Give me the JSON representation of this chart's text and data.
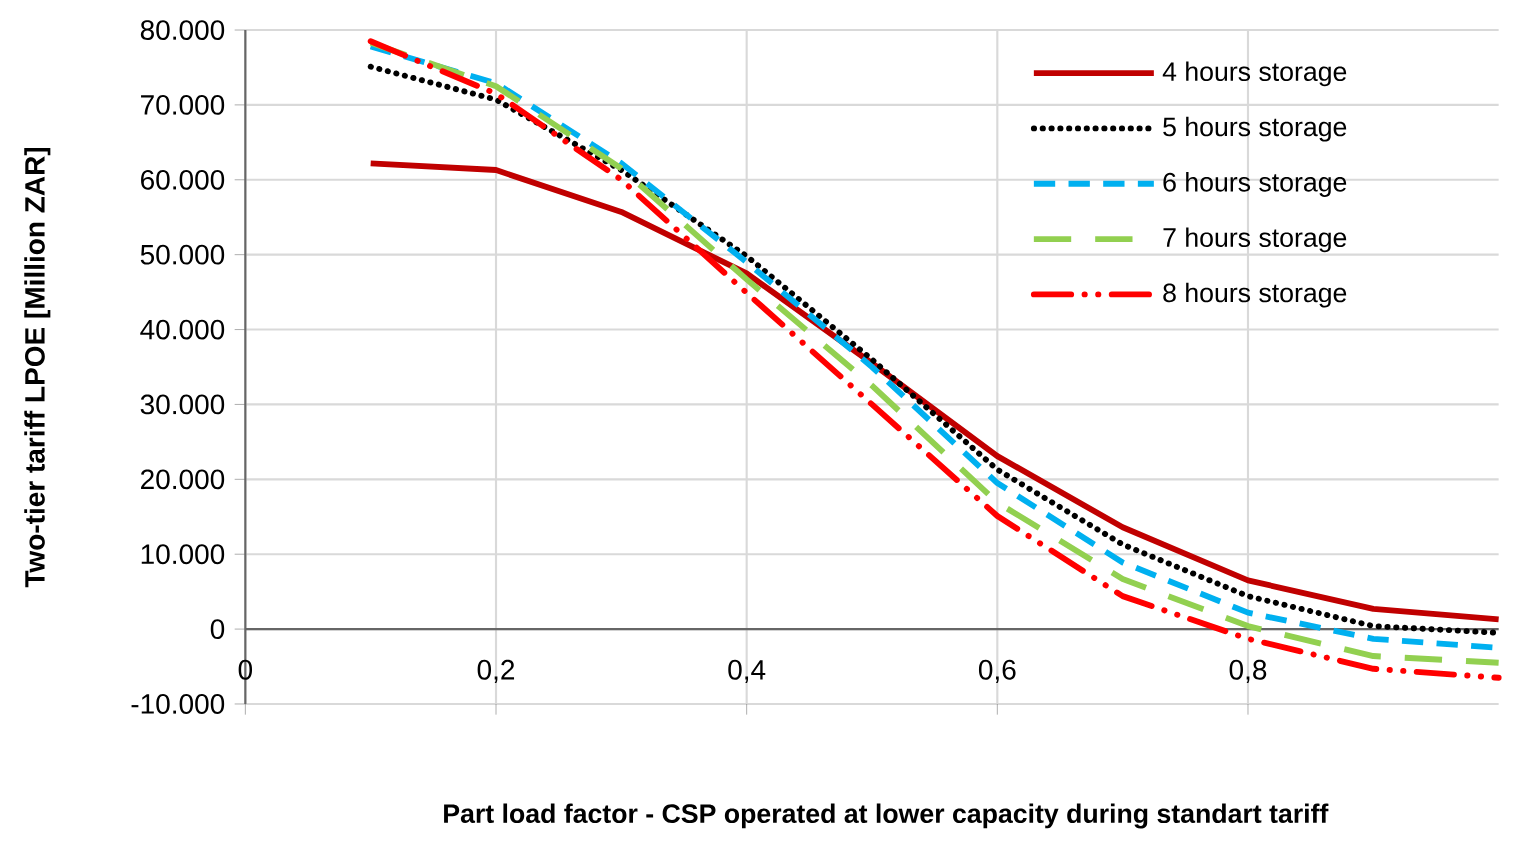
{
  "chart_data": {
    "type": "line",
    "xlabel": "Part load factor - CSP operated at lower capacity during standart tariff",
    "ylabel": "Two-tier  tariff LPOE [Million ZAR]",
    "x": [
      0.1,
      0.2,
      0.3,
      0.4,
      0.5,
      0.6,
      0.7,
      0.8,
      0.9,
      1.0
    ],
    "series": [
      {
        "name": "4 hours storage",
        "color": "#c00000",
        "line_style": "solid",
        "values": [
          62200,
          61300,
          55700,
          47500,
          35500,
          23100,
          13600,
          6500,
          2700,
          1300
        ]
      },
      {
        "name": "5 hours storage",
        "color": "#000000",
        "line_style": "dotted",
        "values": [
          75100,
          70700,
          61300,
          49800,
          36000,
          21300,
          11300,
          4400,
          400,
          -500
        ]
      },
      {
        "name": "6 hours storage",
        "color": "#00b0f0",
        "line_style": "dashed",
        "values": [
          77800,
          72900,
          62200,
          49000,
          35000,
          19500,
          8900,
          2200,
          -1300,
          -2500
        ]
      },
      {
        "name": "7 hours storage",
        "color": "#92d050",
        "line_style": "long dashed",
        "values": [
          78300,
          72500,
          61500,
          46700,
          32500,
          16900,
          6700,
          400,
          -3600,
          -4500
        ]
      },
      {
        "name": "8 hours storage",
        "color": "#ff0000",
        "line_style": "dash dot dot",
        "values": [
          78500,
          71500,
          60000,
          44900,
          30000,
          15100,
          4400,
          -1300,
          -5300,
          -6500
        ]
      }
    ],
    "xlim": [
      0,
      1
    ],
    "ylim": [
      -10000,
      80000
    ],
    "xticks": [
      0,
      {
        "value": 0.2,
        "label": "0,2"
      },
      {
        "value": 0.4,
        "label": "0,4"
      },
      {
        "value": 0.6,
        "label": "0,6"
      },
      {
        "value": 0.8,
        "label": "0,8"
      }
    ],
    "yticks": [
      {
        "value": -10000,
        "label": "-10.000"
      },
      0,
      {
        "value": 10000,
        "label": "10.000"
      },
      {
        "value": 20000,
        "label": "20.000"
      },
      {
        "value": 30000,
        "label": "30.000"
      },
      {
        "value": 40000,
        "label": "40.000"
      },
      {
        "value": 50000,
        "label": "50.000"
      },
      {
        "value": 60000,
        "label": "60.000"
      },
      {
        "value": 70000,
        "label": "70.000"
      },
      {
        "value": 80000,
        "label": "80.000"
      }
    ],
    "grid": true,
    "legend": "top right",
    "marker": "none"
  }
}
